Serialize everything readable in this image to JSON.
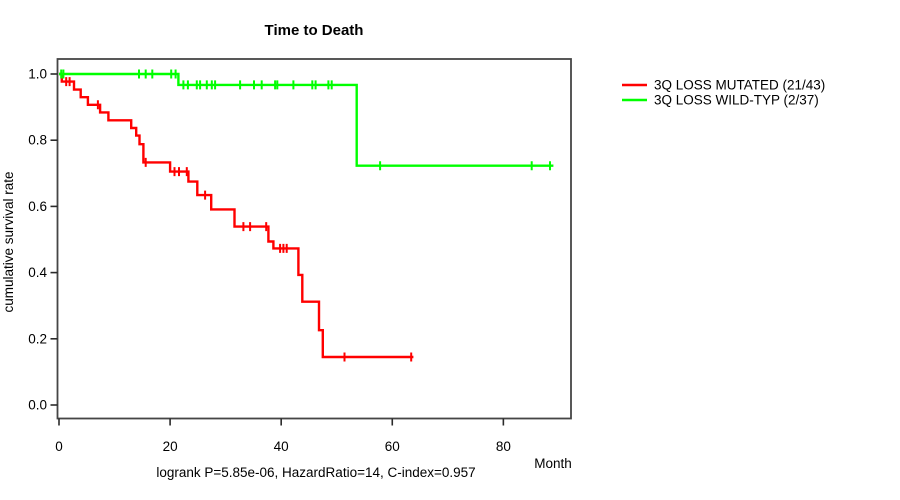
{
  "title": "Time to Death",
  "axes": {
    "x_label": "Month",
    "y_label": "cumulative survival rate"
  },
  "footer": "logrank P=5.85e-06, HazardRatio=14, C-index=0.957",
  "legend": {
    "items": [
      {
        "label": "3Q LOSS MUTATED (21/43)",
        "color": "#ff0000"
      },
      {
        "label": "3Q LOSS WILD-TYP (2/37)",
        "color": "#00ff00"
      }
    ]
  },
  "chart_data": {
    "type": "line",
    "subtype": "kaplan-meier-step",
    "title": "Time to Death",
    "xlabel": "Month",
    "ylabel": "cumulative survival rate",
    "xlim": [
      0,
      92
    ],
    "ylim": [
      0.0,
      1.0
    ],
    "grid": false,
    "legend_position": "right",
    "annotation": "logrank P=5.85e-06, HazardRatio=14, C-index=0.957",
    "x_ticks": [
      {
        "v": 0,
        "label": "0"
      },
      {
        "v": 20,
        "label": "20"
      },
      {
        "v": 40,
        "label": "40"
      },
      {
        "v": 60,
        "label": "60"
      },
      {
        "v": 80,
        "label": "80"
      }
    ],
    "y_ticks": [
      {
        "v": 0.0,
        "label": "0.0"
      },
      {
        "v": 0.2,
        "label": "0.2"
      },
      {
        "v": 0.4,
        "label": "0.4"
      },
      {
        "v": 0.6,
        "label": "0.6"
      },
      {
        "v": 0.8,
        "label": "0.8"
      },
      {
        "v": 1.0,
        "label": "1.0"
      }
    ],
    "series": [
      {
        "name": "3Q LOSS MUTATED (21/43)",
        "key": "mutated",
        "color": "#ff0000",
        "events": 21,
        "n": 43,
        "steps": [
          [
            0,
            1.0
          ],
          [
            0.5,
            0.977
          ],
          [
            2.7,
            0.953
          ],
          [
            3.9,
            0.93
          ],
          [
            5.2,
            0.907
          ],
          [
            7.4,
            0.884
          ],
          [
            8.9,
            0.86
          ],
          [
            13.0,
            0.837
          ],
          [
            13.9,
            0.814
          ],
          [
            14.5,
            0.788
          ],
          [
            15.2,
            0.733
          ],
          [
            20.0,
            0.705
          ],
          [
            23.3,
            0.675
          ],
          [
            24.9,
            0.634
          ],
          [
            27.4,
            0.591
          ],
          [
            31.6,
            0.539
          ],
          [
            37.7,
            0.494
          ],
          [
            38.6,
            0.473
          ],
          [
            43.1,
            0.393
          ],
          [
            43.8,
            0.312
          ],
          [
            46.8,
            0.226
          ],
          [
            47.5,
            0.145
          ]
        ],
        "end_x": 63.8,
        "censors": [
          [
            1.3,
            0.977
          ],
          [
            1.9,
            0.977
          ],
          [
            7.0,
            0.907
          ],
          [
            15.6,
            0.733
          ],
          [
            20.8,
            0.705
          ],
          [
            21.6,
            0.705
          ],
          [
            23.0,
            0.705
          ],
          [
            26.3,
            0.634
          ],
          [
            33.2,
            0.539
          ],
          [
            34.4,
            0.539
          ],
          [
            37.3,
            0.539
          ],
          [
            39.8,
            0.473
          ],
          [
            40.4,
            0.473
          ],
          [
            41.0,
            0.473
          ],
          [
            51.4,
            0.145
          ],
          [
            63.4,
            0.145
          ]
        ]
      },
      {
        "name": "3Q LOSS WILD-TYP (2/37)",
        "key": "wildtype",
        "color": "#00ff00",
        "events": 2,
        "n": 37,
        "steps": [
          [
            0,
            1.0
          ],
          [
            21.5,
            0.967
          ],
          [
            53.6,
            0.723
          ]
        ],
        "end_x": 89.0,
        "censors": [
          [
            0.4,
            1.0
          ],
          [
            0.8,
            1.0
          ],
          [
            14.4,
            1.0
          ],
          [
            15.6,
            1.0
          ],
          [
            16.8,
            1.0
          ],
          [
            20.2,
            1.0
          ],
          [
            21.0,
            1.0
          ],
          [
            22.4,
            0.967
          ],
          [
            23.2,
            0.967
          ],
          [
            24.8,
            0.967
          ],
          [
            25.4,
            0.967
          ],
          [
            26.6,
            0.967
          ],
          [
            27.5,
            0.967
          ],
          [
            28.1,
            0.967
          ],
          [
            32.6,
            0.967
          ],
          [
            35.1,
            0.967
          ],
          [
            36.5,
            0.967
          ],
          [
            38.9,
            0.967
          ],
          [
            39.3,
            0.967
          ],
          [
            42.2,
            0.967
          ],
          [
            45.6,
            0.967
          ],
          [
            46.2,
            0.967
          ],
          [
            48.5,
            0.967
          ],
          [
            49.1,
            0.967
          ],
          [
            57.8,
            0.723
          ],
          [
            85.1,
            0.723
          ],
          [
            88.4,
            0.723
          ]
        ]
      }
    ]
  }
}
